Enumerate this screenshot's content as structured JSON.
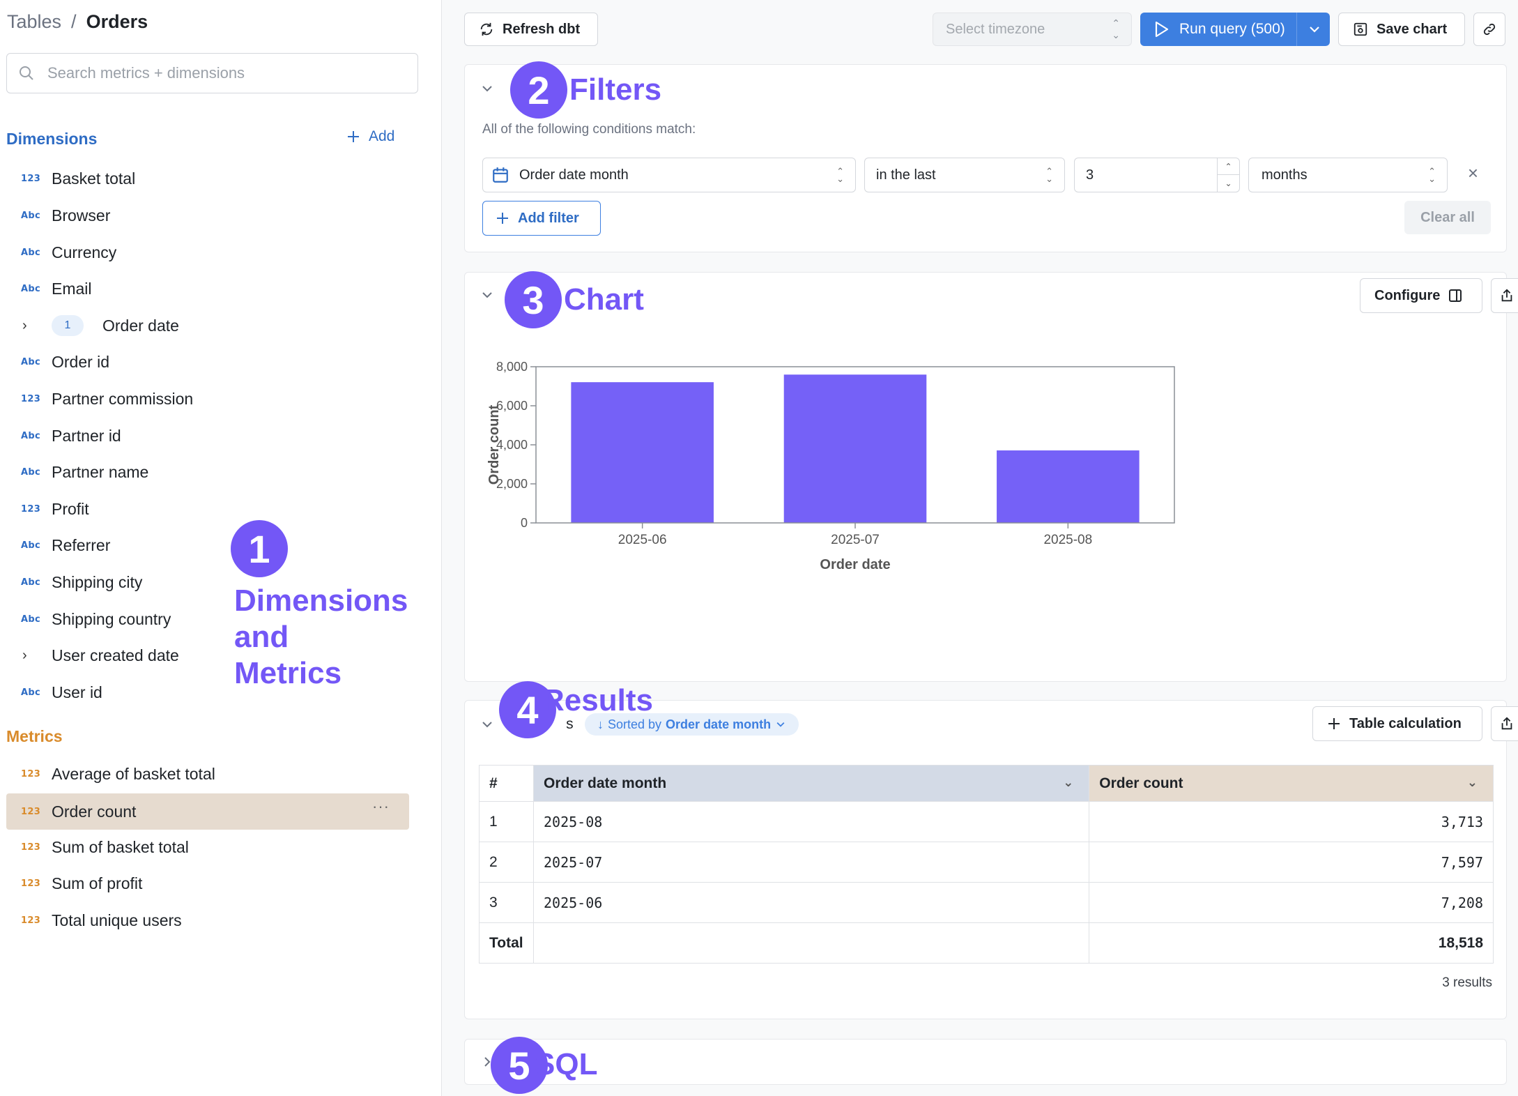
{
  "sidebar": {
    "breadcrumb": {
      "tables": "Tables",
      "sep": "/",
      "current": "Orders"
    },
    "search": {
      "placeholder": "Search metrics + dimensions",
      "value": ""
    },
    "dimensions_title": "Dimensions",
    "add_label": "Add",
    "dimensions": [
      {
        "label": "Basket total",
        "type": "123"
      },
      {
        "label": "Browser",
        "type": "Abc"
      },
      {
        "label": "Currency",
        "type": "Abc"
      },
      {
        "label": "Email",
        "type": "Abc"
      },
      {
        "label": "Order date",
        "type": "group",
        "badge": "1"
      },
      {
        "label": "Order id",
        "type": "Abc"
      },
      {
        "label": "Partner commission",
        "type": "123"
      },
      {
        "label": "Partner id",
        "type": "Abc"
      },
      {
        "label": "Partner name",
        "type": "Abc"
      },
      {
        "label": "Profit",
        "type": "123"
      },
      {
        "label": "Referrer",
        "type": "Abc"
      },
      {
        "label": "Shipping city",
        "type": "Abc"
      },
      {
        "label": "Shipping country",
        "type": "Abc"
      },
      {
        "label": "User created date",
        "type": "group"
      },
      {
        "label": "User id",
        "type": "Abc"
      }
    ],
    "metrics_title": "Metrics",
    "metrics": [
      {
        "label": "Average of basket total",
        "type": "123"
      },
      {
        "label": "Order count",
        "type": "123",
        "selected": true
      },
      {
        "label": "Sum of basket total",
        "type": "123"
      },
      {
        "label": "Sum of profit",
        "type": "123"
      },
      {
        "label": "Total unique users",
        "type": "123"
      }
    ]
  },
  "annotations": {
    "n1": "1",
    "t1a": "Dimensions",
    "t1b": "and",
    "t1c": "Metrics",
    "n2": "2",
    "t2": "Filters",
    "n3": "3",
    "t3": "Chart",
    "n4": "4",
    "t4": "Results",
    "n5": "5",
    "t5": "SQL"
  },
  "toolbar": {
    "refresh_label": "Refresh dbt",
    "timezone_placeholder": "Select timezone",
    "run_label": "Run query (500)",
    "save_label": "Save chart"
  },
  "filters": {
    "subtitle": "All of the following conditions match:",
    "field": "Order date month",
    "operator": "in the last",
    "value": "3",
    "unit": "months",
    "add_filter_label": "Add filter",
    "clear_all_label": "Clear all"
  },
  "chart": {
    "configure_label": "Configure"
  },
  "chart_data": {
    "type": "bar",
    "categories": [
      "2025-06",
      "2025-07",
      "2025-08"
    ],
    "values": [
      7208,
      7597,
      3713
    ],
    "xlabel": "Order date",
    "ylabel": "Order count",
    "ylim": [
      0,
      8000
    ],
    "yticks": [
      0,
      2000,
      4000,
      6000,
      8000
    ],
    "ytick_labels": [
      "0",
      "2,000",
      "4,000",
      "6,000",
      "8,000"
    ],
    "bar_color": "#7561f7",
    "grid": false
  },
  "results": {
    "title_partial_left": "R",
    "title_partial_right": "s",
    "sorted_prefix": "Sorted by",
    "sorted_field": "Order date month",
    "table_calc_label": "Table calculation",
    "columns": [
      "#",
      "Order date month",
      "Order count"
    ],
    "rows": [
      {
        "idx": "1",
        "month": "2025-08",
        "count": "3,713"
      },
      {
        "idx": "2",
        "month": "2025-07",
        "count": "7,597"
      },
      {
        "idx": "3",
        "month": "2025-06",
        "count": "7,208"
      }
    ],
    "total_label": "Total",
    "total_value": "18,518",
    "count_label": "3 results"
  },
  "colors": {
    "accent": "#7357f6",
    "dimension": "#2e6cc4",
    "metric": "#d98b2b",
    "primary_button": "#3d7fe0"
  }
}
